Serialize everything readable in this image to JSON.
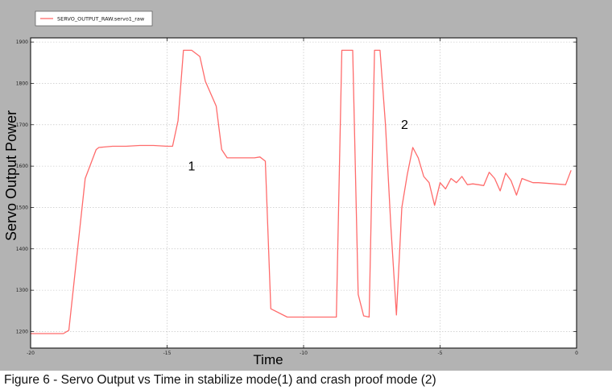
{
  "caption": "Figure 6 - Servo Output vs Time in stabilize mode(1) and crash proof mode (2)",
  "chart_data": {
    "type": "line",
    "xlabel": "Time",
    "ylabel": "Servo Output Power",
    "xlim": [
      -20,
      0
    ],
    "ylim": [
      1160,
      1910
    ],
    "xticks": [
      -20,
      -15,
      -10,
      -5,
      0
    ],
    "yticks": [
      1200,
      1300,
      1400,
      1500,
      1600,
      1700,
      1800,
      1900
    ],
    "grid": true,
    "legend_position": "top-left",
    "series": [
      {
        "name": "SERVO_OUTPUT_RAW.servo1_raw",
        "color": "#ff6b6b",
        "x": [
          -20,
          -18.8,
          -18.6,
          -18.0,
          -17.6,
          -17.5,
          -17.0,
          -16.5,
          -16.0,
          -15.5,
          -15.0,
          -14.8,
          -14.6,
          -14.4,
          -14.1,
          -13.8,
          -13.6,
          -13.2,
          -13.0,
          -12.8,
          -12.2,
          -11.8,
          -11.6,
          -11.4,
          -11.2,
          -10.6,
          -9.0,
          -8.8,
          -8.6,
          -8.2,
          -8.0,
          -7.8,
          -7.6,
          -7.4,
          -7.2,
          -7.0,
          -6.8,
          -6.6,
          -6.4,
          -6.2,
          -6.0,
          -5.8,
          -5.6,
          -5.4,
          -5.2,
          -5.0,
          -4.8,
          -4.6,
          -4.4,
          -4.2,
          -4.0,
          -3.8,
          -3.6,
          -3.4,
          -3.2,
          -3.0,
          -2.8,
          -2.6,
          -2.4,
          -2.2,
          -2.0,
          -1.8,
          -1.6,
          -1.4,
          -1.0,
          -0.6,
          -0.4,
          -0.2
        ],
        "y": [
          1195,
          1195,
          1203,
          1570,
          1640,
          1645,
          1648,
          1648,
          1650,
          1650,
          1648,
          1648,
          1710,
          1880,
          1880,
          1865,
          1805,
          1745,
          1640,
          1620,
          1620,
          1620,
          1622,
          1612,
          1255,
          1235,
          1235,
          1235,
          1880,
          1880,
          1290,
          1238,
          1235,
          1880,
          1880,
          1700,
          1450,
          1240,
          1500,
          1580,
          1645,
          1620,
          1575,
          1560,
          1505,
          1560,
          1545,
          1570,
          1560,
          1575,
          1555,
          1557,
          1555,
          1553,
          1585,
          1570,
          1540,
          1583,
          1565,
          1530,
          1570,
          1565,
          1560,
          1560,
          1558,
          1556,
          1555,
          1590
        ]
      }
    ],
    "annotations": [
      {
        "text": "1",
        "x": -14.1,
        "y": 1590
      },
      {
        "text": "2",
        "x": -6.3,
        "y": 1690
      }
    ]
  }
}
